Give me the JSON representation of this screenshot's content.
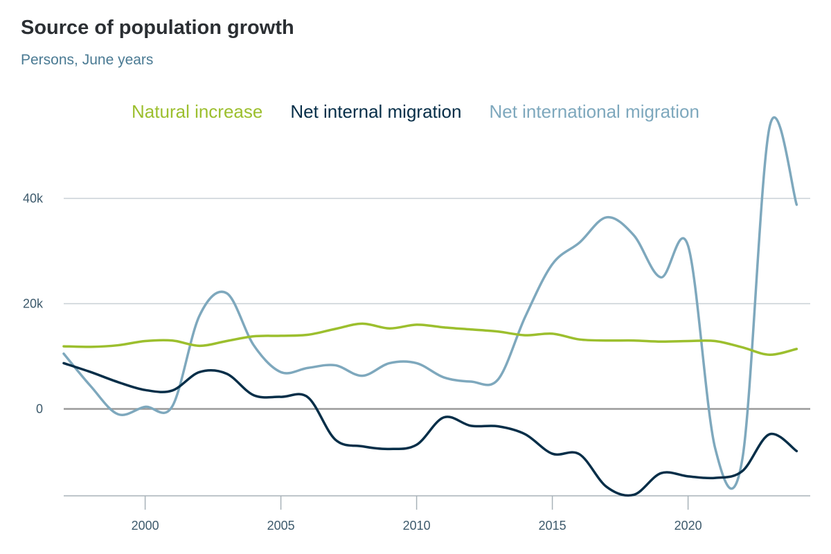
{
  "chart_data": {
    "type": "line",
    "title": "Source of population growth",
    "subtitle": "Persons, June years",
    "xlabel": "",
    "ylabel": "",
    "xlim": [
      1997,
      2024.5
    ],
    "ylim": [
      -16500,
      54000
    ],
    "x_ticks": [
      2000,
      2005,
      2010,
      2015,
      2020
    ],
    "x_tick_labels": [
      "2000",
      "2005",
      "2010",
      "2015",
      "2020"
    ],
    "y_ticks": [
      0,
      20000,
      40000
    ],
    "y_tick_labels": [
      "0",
      "20k",
      "40k"
    ],
    "grid": true,
    "legend_position": "top-center",
    "x": [
      1997,
      1998,
      1999,
      2000,
      2001,
      2002,
      2003,
      2004,
      2005,
      2006,
      2007,
      2008,
      2009,
      2010,
      2011,
      2012,
      2013,
      2014,
      2015,
      2016,
      2017,
      2018,
      2019,
      2020,
      2021,
      2022,
      2023,
      2024
    ],
    "series": [
      {
        "name": "Natural increase",
        "color": "#9cbf2e",
        "values": [
          11900,
          11800,
          12100,
          12900,
          13000,
          12000,
          12900,
          13800,
          13900,
          14100,
          15200,
          16200,
          15300,
          16000,
          15500,
          15100,
          14700,
          14000,
          14300,
          13200,
          13000,
          13000,
          12800,
          12900,
          12900,
          11700,
          10300,
          11400
        ]
      },
      {
        "name": "Net internal migration",
        "color": "#062e48",
        "values": [
          8700,
          7000,
          5100,
          3600,
          3500,
          7000,
          6700,
          2600,
          2300,
          2200,
          -5800,
          -7100,
          -7600,
          -6800,
          -1600,
          -3200,
          -3300,
          -4800,
          -8500,
          -8600,
          -14800,
          -16300,
          -12200,
          -12800,
          -13100,
          -11800,
          -4800,
          -8000
        ]
      },
      {
        "name": "Net international migration",
        "color": "#7ea8bd",
        "values": [
          10500,
          4300,
          -1000,
          400,
          500,
          17700,
          22000,
          12100,
          7000,
          7800,
          8300,
          6300,
          8700,
          8700,
          6000,
          5200,
          5600,
          17500,
          27500,
          31600,
          36400,
          33000,
          25000,
          31000,
          -7500,
          -9500,
          53500,
          38800
        ]
      }
    ]
  }
}
